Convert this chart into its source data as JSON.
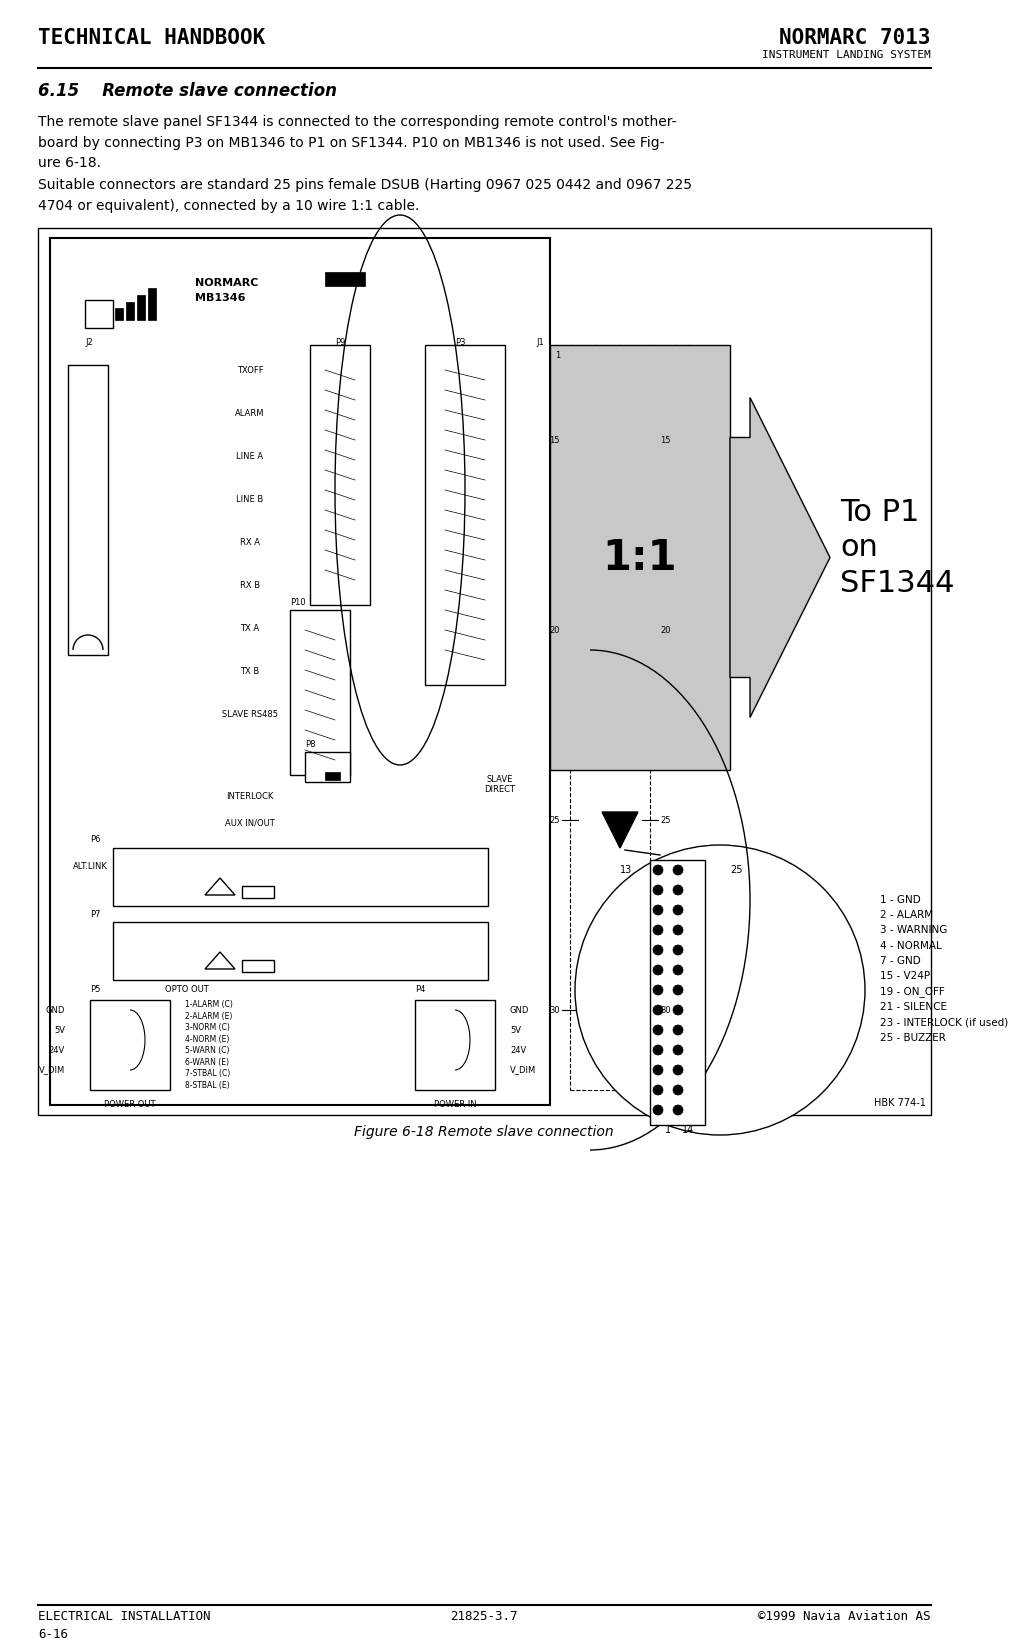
{
  "page_title_left": "TECHNICAL HANDBOOK",
  "page_title_right": "NORMARC 7013",
  "page_subtitle_right": "INSTRUMENT LANDING SYSTEM",
  "footer_left": "ELECTRICAL INSTALLATION",
  "footer_center": "21825-3.7",
  "footer_right": "©1999 Navia Aviation AS",
  "footer_page": "6-16",
  "section_title": "6.15    Remote slave connection",
  "body_text1": "The remote slave panel SF1344 is connected to the corresponding remote control's mother-\nboard by connecting P3 on MB1346 to P1 on SF1344. P10 on MB1346 is not used. See Fig-\nure 6-18.",
  "body_text2": "Suitable connectors are standard 25 pins female DSUB (Harting 0967 025 0442 and 0967 225\n4704 or equivalent), connected by a 10 wire 1:1 cable.",
  "figure_caption": "Figure 6-18 Remote slave connection",
  "hbk_ref": "HBK 774-1",
  "arrow_label": "To P1\non\nSF1344",
  "ratio_label": "1:1",
  "connector_labels": "1 - GND\n2 - ALARM\n3 - WARNING\n4 - NORMAL\n7 - GND\n15 - V24P\n19 - ON_OFF\n21 - SILENCE\n23 - INTERLOCK (if used)\n25 - BUZZER",
  "opto_labels": [
    "1-ALARM (C)",
    "2-ALARM (E)",
    "3-NORM (C)",
    "4-NORM (E)",
    "5-WARN (C)",
    "6-WARN (E)",
    "7-STBAL (C)",
    "8-STBAL (E)"
  ],
  "power_out_labels": [
    "GND",
    "5V",
    "24V",
    "V_DIM"
  ],
  "power_in_labels": [
    "GND",
    "5V",
    "24V",
    "V_DIM"
  ],
  "mb_labels": [
    "TXOFF",
    "ALARM",
    "LINE A",
    "LINE B",
    "RX A",
    "RX B",
    "TX A",
    "TX B",
    "SLAVE RS485"
  ],
  "wire_nums_left": [
    "15",
    "20",
    "25",
    "30"
  ],
  "bg_color": "#ffffff"
}
